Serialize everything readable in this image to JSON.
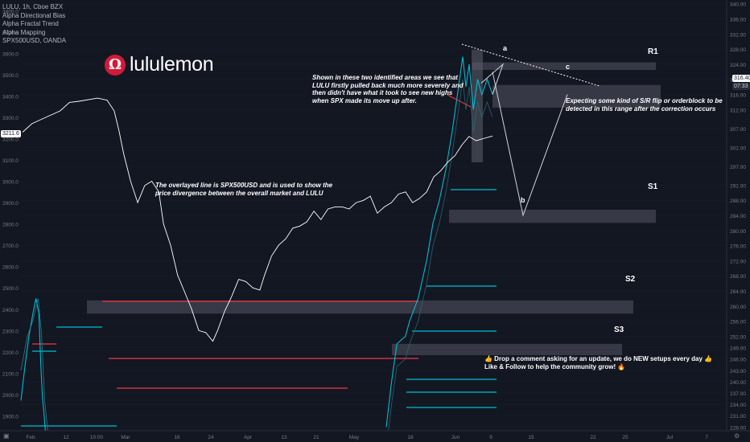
{
  "legend": {
    "symbol": "LULU, 1h, Cboe BZX",
    "indicators": [
      "Alpha Directional Bias",
      "Alpha Fractal Trend",
      "Alpha Mapping",
      "SPX500USD, OANDA"
    ]
  },
  "brand": {
    "logo_letter": "Ω",
    "name": "lululemon"
  },
  "notes": {
    "divergence": "Shown in these two identified areas we see that LULU firstly pulled back much more severely and then didn't have what it took to see new highs when SPX made its move up after.",
    "overlay": "The overlayed line is SPX500USD and is used to show the price divergence between the overall market and LULU",
    "expectation": "Expecting some kind of S/R flip or orderblock to be detected in this range after the correction occurs",
    "cta_line1": "👍 Drop a comment asking for an update, we do NEW setups every day 👍",
    "cta_line2": "Like & Follow to help the community grow! 🔥"
  },
  "levels": {
    "r1": "R1",
    "s1": "S1",
    "s2": "S2",
    "s3": "S3"
  },
  "waves": {
    "a": "a",
    "b": "b",
    "c": "c"
  },
  "badges": {
    "left_price": "3211.6",
    "right_price": "316.40",
    "right_time": "07:33"
  },
  "colors": {
    "background": "#131722",
    "price_line": "#ffffff",
    "teal": "#00bcd4",
    "red": "#f23645",
    "zone": "#434651"
  },
  "chart_data": {
    "type": "line",
    "title": "LULU, 1h, Cboe BZX",
    "x_ticks": [
      "Feb",
      "12",
      "10:00",
      "Mar",
      "16",
      "24",
      "Apr",
      "13",
      "21",
      "May",
      "18",
      "Jun",
      "9",
      "15",
      "22",
      "25",
      "Jul",
      "7"
    ],
    "left_axis": {
      "label": "SPX500USD",
      "ticks": [
        1900,
        2000,
        2100,
        2200,
        2300,
        2400,
        2500,
        2600,
        2700,
        2800,
        2900,
        3000,
        3100,
        3200,
        3300,
        3400,
        3500,
        3600,
        3700,
        3800
      ],
      "range": [
        1830,
        3850
      ]
    },
    "right_axis": {
      "label": "LULU",
      "ticks": [
        228,
        231,
        234,
        237,
        240,
        243,
        246,
        249,
        252,
        256,
        260,
        264,
        268,
        272,
        276,
        280,
        284,
        288,
        292,
        297,
        302,
        307,
        312,
        316,
        320,
        324,
        328,
        332,
        336,
        340
      ],
      "range": [
        227,
        341
      ]
    },
    "spx_series": [
      {
        "t": 0.0,
        "v": 3230
      },
      {
        "t": 0.02,
        "v": 3270
      },
      {
        "t": 0.05,
        "v": 3300
      },
      {
        "t": 0.08,
        "v": 3330
      },
      {
        "t": 0.1,
        "v": 3370
      },
      {
        "t": 0.12,
        "v": 3375
      },
      {
        "t": 0.16,
        "v": 3390
      },
      {
        "t": 0.18,
        "v": 3380
      },
      {
        "t": 0.195,
        "v": 3330
      },
      {
        "t": 0.205,
        "v": 3240
      },
      {
        "t": 0.215,
        "v": 3130
      },
      {
        "t": 0.23,
        "v": 3000
      },
      {
        "t": 0.245,
        "v": 2900
      },
      {
        "t": 0.26,
        "v": 2980
      },
      {
        "t": 0.275,
        "v": 3000
      },
      {
        "t": 0.29,
        "v": 2950
      },
      {
        "t": 0.3,
        "v": 2800
      },
      {
        "t": 0.315,
        "v": 2700
      },
      {
        "t": 0.33,
        "v": 2560
      },
      {
        "t": 0.345,
        "v": 2480
      },
      {
        "t": 0.36,
        "v": 2400
      },
      {
        "t": 0.375,
        "v": 2300
      },
      {
        "t": 0.39,
        "v": 2290
      },
      {
        "t": 0.405,
        "v": 2250
      },
      {
        "t": 0.415,
        "v": 2300
      },
      {
        "t": 0.43,
        "v": 2390
      },
      {
        "t": 0.445,
        "v": 2460
      },
      {
        "t": 0.46,
        "v": 2540
      },
      {
        "t": 0.475,
        "v": 2530
      },
      {
        "t": 0.49,
        "v": 2500
      },
      {
        "t": 0.505,
        "v": 2490
      },
      {
        "t": 0.515,
        "v": 2560
      },
      {
        "t": 0.53,
        "v": 2650
      },
      {
        "t": 0.545,
        "v": 2700
      },
      {
        "t": 0.56,
        "v": 2730
      },
      {
        "t": 0.575,
        "v": 2780
      },
      {
        "t": 0.59,
        "v": 2790
      },
      {
        "t": 0.605,
        "v": 2810
      },
      {
        "t": 0.62,
        "v": 2860
      },
      {
        "t": 0.635,
        "v": 2820
      },
      {
        "t": 0.65,
        "v": 2870
      },
      {
        "t": 0.665,
        "v": 2880
      },
      {
        "t": 0.68,
        "v": 2880
      },
      {
        "t": 0.695,
        "v": 2870
      },
      {
        "t": 0.71,
        "v": 2900
      },
      {
        "t": 0.725,
        "v": 2910
      },
      {
        "t": 0.74,
        "v": 2930
      },
      {
        "t": 0.755,
        "v": 2850
      },
      {
        "t": 0.77,
        "v": 2880
      },
      {
        "t": 0.785,
        "v": 2900
      },
      {
        "t": 0.8,
        "v": 2940
      },
      {
        "t": 0.815,
        "v": 2950
      },
      {
        "t": 0.83,
        "v": 2900
      },
      {
        "t": 0.845,
        "v": 2920
      },
      {
        "t": 0.86,
        "v": 2950
      },
      {
        "t": 0.875,
        "v": 3020
      },
      {
        "t": 0.89,
        "v": 3050
      },
      {
        "t": 0.905,
        "v": 3090
      },
      {
        "t": 0.92,
        "v": 3120
      },
      {
        "t": 0.935,
        "v": 3170
      },
      {
        "t": 0.95,
        "v": 3210
      },
      {
        "t": 0.965,
        "v": 3190
      },
      {
        "t": 0.98,
        "v": 3200
      },
      {
        "t": 1.0,
        "v": 3212
      }
    ],
    "lulu_series": [
      {
        "t": 0.0,
        "v": 235
      },
      {
        "t": 0.04,
        "v": 244
      },
      {
        "t": 0.08,
        "v": 252
      },
      {
        "t": 0.12,
        "v": 258
      },
      {
        "t": 0.15,
        "v": 262
      },
      {
        "t": 0.18,
        "v": 258
      },
      {
        "t": 0.2,
        "v": 244
      },
      {
        "t": 0.215,
        "v": 236
      },
      {
        "t": 0.23,
        "v": 232
      },
      {
        "t": 0.245,
        "v": 227
      }
    ],
    "lulu_series_2": [
      {
        "t": 0.0,
        "v": 243
      },
      {
        "t": 0.06,
        "v": 252
      },
      {
        "t": 0.11,
        "v": 256
      },
      {
        "t": 0.16,
        "v": 262
      },
      {
        "t": 0.19,
        "v": 253
      },
      {
        "t": 0.22,
        "v": 235
      },
      {
        "t": 0.26,
        "v": 224
      }
    ],
    "lulu_recent": [
      {
        "t": 0.0,
        "v": 228
      },
      {
        "t": 0.05,
        "v": 240
      },
      {
        "t": 0.1,
        "v": 250
      },
      {
        "t": 0.18,
        "v": 252
      },
      {
        "t": 0.22,
        "v": 256
      },
      {
        "t": 0.3,
        "v": 262
      },
      {
        "t": 0.38,
        "v": 272
      },
      {
        "t": 0.44,
        "v": 282
      },
      {
        "t": 0.5,
        "v": 288
      },
      {
        "t": 0.56,
        "v": 296
      },
      {
        "t": 0.62,
        "v": 306
      },
      {
        "t": 0.68,
        "v": 318
      },
      {
        "t": 0.72,
        "v": 326
      },
      {
        "t": 0.75,
        "v": 318
      },
      {
        "t": 0.78,
        "v": 324
      },
      {
        "t": 0.82,
        "v": 312
      },
      {
        "t": 0.86,
        "v": 320
      },
      {
        "t": 0.9,
        "v": 316
      },
      {
        "t": 0.95,
        "v": 320
      },
      {
        "t": 1.0,
        "v": 316
      }
    ],
    "zones": [
      {
        "label": "R1",
        "lulu_top": 324.5,
        "lulu_bottom": 322.5
      },
      {
        "label": "zone-upper",
        "lulu_top": 318.5,
        "lulu_bottom": 312.5
      },
      {
        "label": "S1",
        "lulu_top": 285.5,
        "lulu_bottom": 282
      },
      {
        "label": "S2",
        "lulu_top": 261.5,
        "lulu_bottom": 258
      },
      {
        "label": "S3",
        "lulu_top": 250,
        "lulu_bottom": 247
      }
    ],
    "projection": [
      {
        "label": "a",
        "v": 322
      },
      {
        "label": "b",
        "v": 284
      },
      {
        "label": "c",
        "v": 316
      }
    ]
  }
}
